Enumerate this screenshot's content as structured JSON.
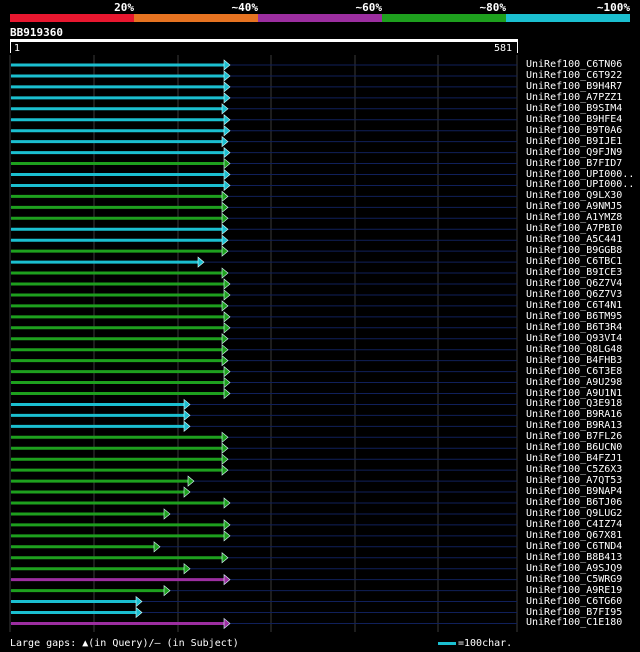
{
  "legend": {
    "labels": [
      "20%",
      "~40%",
      "~60%",
      "~80%",
      "~100%"
    ],
    "colors": [
      "#e8172f",
      "#e67321",
      "#9c2ea0",
      "#1ea01e",
      "#1bbfd0"
    ]
  },
  "query": {
    "id": "BB919360",
    "start": "1",
    "end": "581"
  },
  "hits": [
    {
      "label": "UniRef100_C6TN06",
      "end": 228,
      "color": "cyan"
    },
    {
      "label": "UniRef100_C6T922",
      "end": 228,
      "color": "cyan"
    },
    {
      "label": "UniRef100_B9H4R7",
      "end": 228,
      "color": "cyan"
    },
    {
      "label": "UniRef100_A7PZZ1",
      "end": 228,
      "color": "cyan"
    },
    {
      "label": "UniRef100_B9SIM4",
      "end": 226,
      "color": "cyan"
    },
    {
      "label": "UniRef100_B9HFE4",
      "end": 228,
      "color": "cyan"
    },
    {
      "label": "UniRef100_B9T0A6",
      "end": 228,
      "color": "cyan"
    },
    {
      "label": "UniRef100_B9IJE1",
      "end": 226,
      "color": "cyan"
    },
    {
      "label": "UniRef100_Q9FJN9",
      "end": 228,
      "color": "cyan"
    },
    {
      "label": "UniRef100_B7FID7",
      "end": 228,
      "color": "green"
    },
    {
      "label": "UniRef100_UPI000..",
      "end": 228,
      "color": "cyan"
    },
    {
      "label": "UniRef100_UPI000..",
      "end": 228,
      "color": "cyan"
    },
    {
      "label": "UniRef100_Q9LX30",
      "end": 226,
      "color": "green"
    },
    {
      "label": "UniRef100_A9NMJ5",
      "end": 226,
      "color": "green"
    },
    {
      "label": "UniRef100_A1YMZ8",
      "end": 226,
      "color": "green"
    },
    {
      "label": "UniRef100_A7PBI0",
      "end": 226,
      "color": "cyan"
    },
    {
      "label": "UniRef100_A5C441",
      "end": 226,
      "color": "cyan"
    },
    {
      "label": "UniRef100_B9GGB8",
      "end": 226,
      "color": "green"
    },
    {
      "label": "UniRef100_C6TBC1",
      "end": 202,
      "color": "cyan"
    },
    {
      "label": "UniRef100_B9ICE3",
      "end": 226,
      "color": "green"
    },
    {
      "label": "UniRef100_Q6Z7V4",
      "end": 228,
      "color": "green"
    },
    {
      "label": "UniRef100_Q6Z7V3",
      "end": 228,
      "color": "green"
    },
    {
      "label": "UniRef100_C6T4N1",
      "end": 226,
      "color": "green"
    },
    {
      "label": "UniRef100_B6TM95",
      "end": 228,
      "color": "green"
    },
    {
      "label": "UniRef100_B6T3R4",
      "end": 228,
      "color": "green"
    },
    {
      "label": "UniRef100_Q93VI4",
      "end": 226,
      "color": "green"
    },
    {
      "label": "UniRef100_Q8LG48",
      "end": 226,
      "color": "green"
    },
    {
      "label": "UniRef100_B4FHB3",
      "end": 226,
      "color": "green"
    },
    {
      "label": "UniRef100_C6T3E8",
      "end": 228,
      "color": "green"
    },
    {
      "label": "UniRef100_A9U298",
      "end": 228,
      "color": "green"
    },
    {
      "label": "UniRef100_A9U1N1",
      "end": 228,
      "color": "green"
    },
    {
      "label": "UniRef100_Q3E918",
      "end": 188,
      "color": "cyan"
    },
    {
      "label": "UniRef100_B9RA16",
      "end": 188,
      "color": "cyan"
    },
    {
      "label": "UniRef100_B9RA13",
      "end": 188,
      "color": "cyan"
    },
    {
      "label": "UniRef100_B7FL26",
      "end": 226,
      "color": "green"
    },
    {
      "label": "UniRef100_B6UCN0",
      "end": 226,
      "color": "green"
    },
    {
      "label": "UniRef100_B4FZJ1",
      "end": 226,
      "color": "green"
    },
    {
      "label": "UniRef100_C5Z6X3",
      "end": 226,
      "color": "green"
    },
    {
      "label": "UniRef100_A7QT53",
      "end": 192,
      "color": "green"
    },
    {
      "label": "UniRef100_B9NAP4",
      "end": 188,
      "color": "green"
    },
    {
      "label": "UniRef100_B6TJ06",
      "end": 228,
      "color": "green"
    },
    {
      "label": "UniRef100_Q9LUG2",
      "end": 168,
      "color": "green"
    },
    {
      "label": "UniRef100_C4IZ74",
      "end": 228,
      "color": "green"
    },
    {
      "label": "UniRef100_Q67X81",
      "end": 228,
      "color": "green"
    },
    {
      "label": "UniRef100_C6TND4",
      "end": 158,
      "color": "green"
    },
    {
      "label": "UniRef100_B8B413",
      "end": 226,
      "color": "green"
    },
    {
      "label": "UniRef100_A9SJQ9",
      "end": 188,
      "color": "green"
    },
    {
      "label": "UniRef100_C5WRG9",
      "end": 228,
      "color": "purple"
    },
    {
      "label": "UniRef100_A9RE19",
      "end": 168,
      "color": "green"
    },
    {
      "label": "UniRef100_C6TG60",
      "end": 140,
      "color": "cyan"
    },
    {
      "label": "UniRef100_B7FI95",
      "end": 140,
      "color": "cyan"
    },
    {
      "label": "UniRef100_C1E180",
      "end": 228,
      "color": "purple"
    }
  ],
  "footer": {
    "text": "Large gaps: ▲(in Query)/— (in Subject)",
    "scale": "=100char."
  }
}
